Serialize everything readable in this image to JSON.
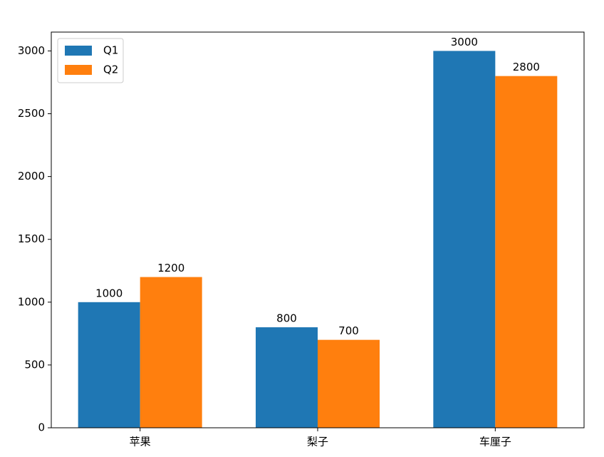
{
  "chart_data": {
    "type": "bar",
    "categories": [
      "苹果",
      "梨子",
      "车厘子"
    ],
    "series": [
      {
        "name": "Q1",
        "color": "#1f77b4",
        "values": [
          1000,
          800,
          3000
        ]
      },
      {
        "name": "Q2",
        "color": "#ff7f0e",
        "values": [
          1200,
          700,
          2800
        ]
      }
    ],
    "ylim": [
      0,
      3150
    ],
    "yticks": [
      0,
      500,
      1000,
      1500,
      2000,
      2500,
      3000
    ],
    "legend": "upper left",
    "grid": false
  }
}
